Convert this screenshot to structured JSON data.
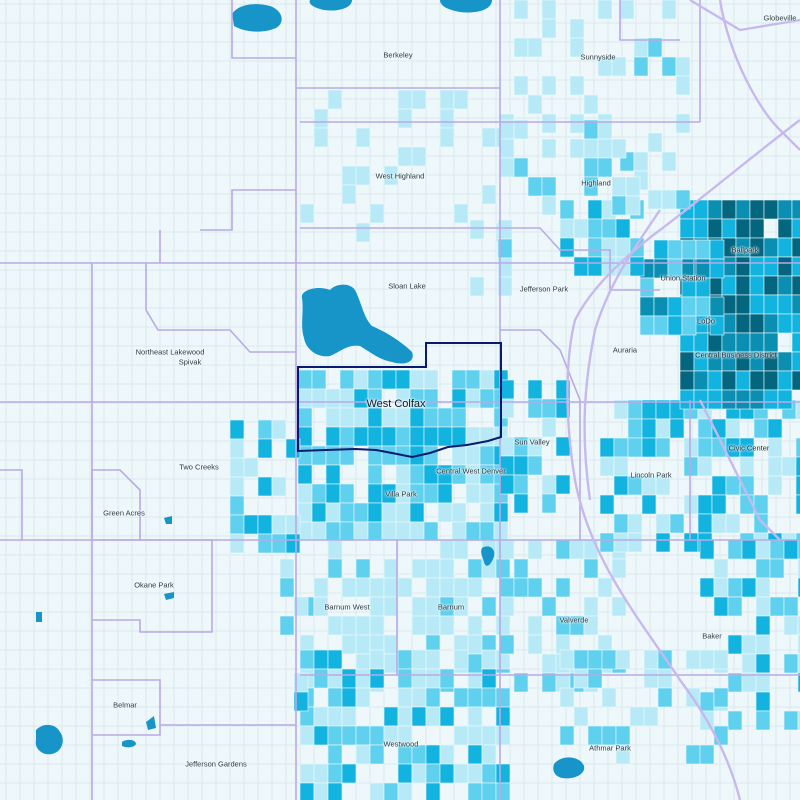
{
  "map": {
    "focus_neighborhood": "West Colfax",
    "colors": {
      "background": "#eef8fb",
      "street": "#d4e3ea",
      "boundary": "#b9a9e6",
      "highway": "#c7b9ee",
      "water": "#1795c9",
      "focus_outline": "#0a1a70",
      "class_1": "#b7eaf6",
      "class_2": "#5fd0ee",
      "class_3": "#13b3e0",
      "class_4": "#0a8fb3",
      "class_5": "#04657f"
    },
    "labels": {
      "globeville": "Globeville",
      "berkeley": "Berkeley",
      "sunnyside": "Sunnyside",
      "west_highland": "West Highland",
      "highland": "Highland",
      "sloan_lake": "Sloan Lake",
      "jefferson_park": "Jefferson Park",
      "ballpark": "Ballpark",
      "union_station": "Union Station",
      "lodo": "LoDo",
      "auraria": "Auraria",
      "central_business_district": "Central Business District",
      "northeast_lakewood": "Northeast Lakewood",
      "spivak": "Spivak",
      "west_colfax": "West Colfax",
      "sun_valley": "Sun Valley",
      "civic_center": "Civic Center",
      "two_creeks": "Two Creeks",
      "central_west_denver": "Central West Denver",
      "lincoln_park": "Lincoln Park",
      "villa_park": "Villa Park",
      "green_acres": "Green Acres",
      "okane_park": "Okane Park",
      "barnum_west": "Barnum West",
      "barnum": "Barnum",
      "valverde": "Valverde",
      "baker": "Baker",
      "belmar": "Belmar",
      "westwood": "Westwood",
      "athmar_park": "Athmar Park",
      "jefferson_gardens": "Jefferson Gardens"
    }
  }
}
